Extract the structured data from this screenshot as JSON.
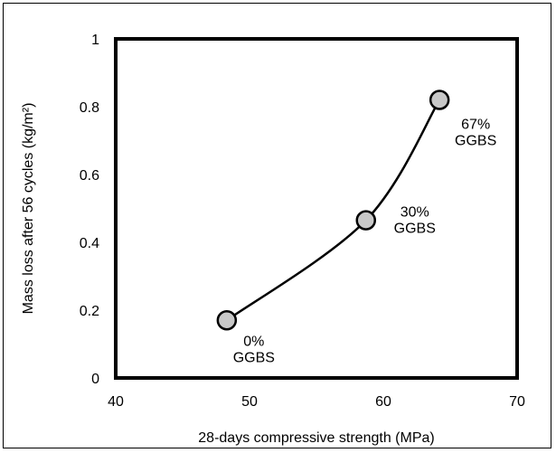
{
  "chart_data": {
    "type": "line",
    "title": "",
    "xlabel": "28-days compressive strength (MPa)",
    "ylabel": "Mass loss after 56 cycles (kg/m²)",
    "xlim": [
      40,
      70
    ],
    "ylim": [
      0,
      1
    ],
    "xticks": [
      40,
      50,
      60,
      70
    ],
    "yticks": [
      0,
      0.2,
      0.4,
      0.6,
      0.8,
      1
    ],
    "grid": false,
    "x": [
      48.3,
      58.7,
      64.2
    ],
    "y": [
      0.17,
      0.465,
      0.82
    ],
    "point_labels": [
      [
        "0%",
        "GGBS"
      ],
      [
        "30%",
        "GGBS"
      ],
      [
        "67%",
        "GGBS"
      ]
    ],
    "marker_color": "#c8c8c8",
    "line_color": "#000000"
  }
}
